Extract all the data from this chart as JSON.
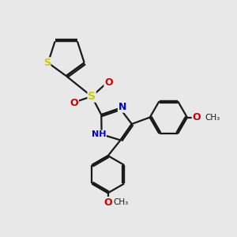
{
  "bg_color": "#e8e8e8",
  "bond_color": "#1a1a1a",
  "sulfur_color": "#cccc00",
  "nitrogen_color": "#0000cc",
  "oxygen_color": "#cc0000",
  "line_width": 1.6,
  "font_size_atom": 9,
  "font_size_small": 7.5,
  "xlim": [
    0,
    10
  ],
  "ylim": [
    0,
    10
  ]
}
